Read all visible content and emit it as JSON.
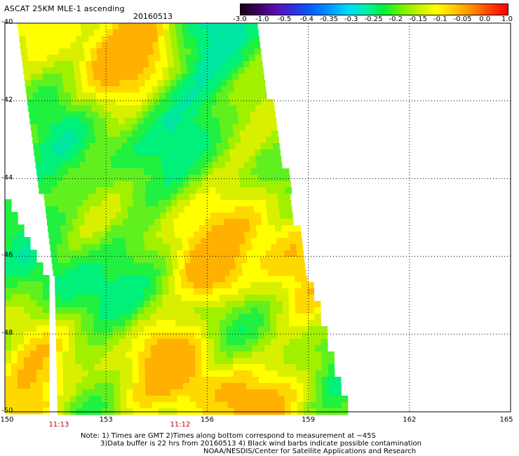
{
  "header": {
    "title": "ASCAT 25KM MLE-1 ascending",
    "date": "20160513"
  },
  "colorbar": {
    "labels": [
      "-3.0",
      "-1.0",
      "-0.5",
      "-0.4",
      "-0.35",
      "-0.3",
      "-0.25",
      "-0.2",
      "-0.15",
      "-0.1",
      "-0.05",
      "0.0",
      "1.0"
    ],
    "colors": [
      "#1a001a",
      "#3c0060",
      "#5a10b0",
      "#3030e0",
      "#0060ff",
      "#0098ff",
      "#00d8ff",
      "#00f0b0",
      "#00f040",
      "#70f000",
      "#c8f000",
      "#ffff00",
      "#ffc800",
      "#ff8c00",
      "#ff4000",
      "#ff0000"
    ]
  },
  "axes": {
    "lon_labels": [
      "150",
      "153",
      "156",
      "159",
      "162",
      "165"
    ],
    "lat_labels": [
      "-40",
      "-42",
      "-44",
      "-46",
      "-48",
      "-50"
    ],
    "lon_range": [
      150,
      165
    ],
    "lat_range": [
      -40,
      -50
    ]
  },
  "times": [
    {
      "label": "11:13",
      "lon": 151.6
    },
    {
      "label": "11:12",
      "lon": 155.2
    }
  ],
  "notes": {
    "line1": "Note: 1) Times are GMT 2)Times along bottom correspond to measurement at ~45S",
    "line2": "3)Data buffer is 22 hrs from 20160513 4) Black wind barbs indicate possible contamination",
    "line3": "NOAA/NESDIS/Center for Satellite Applications and Research"
  }
}
